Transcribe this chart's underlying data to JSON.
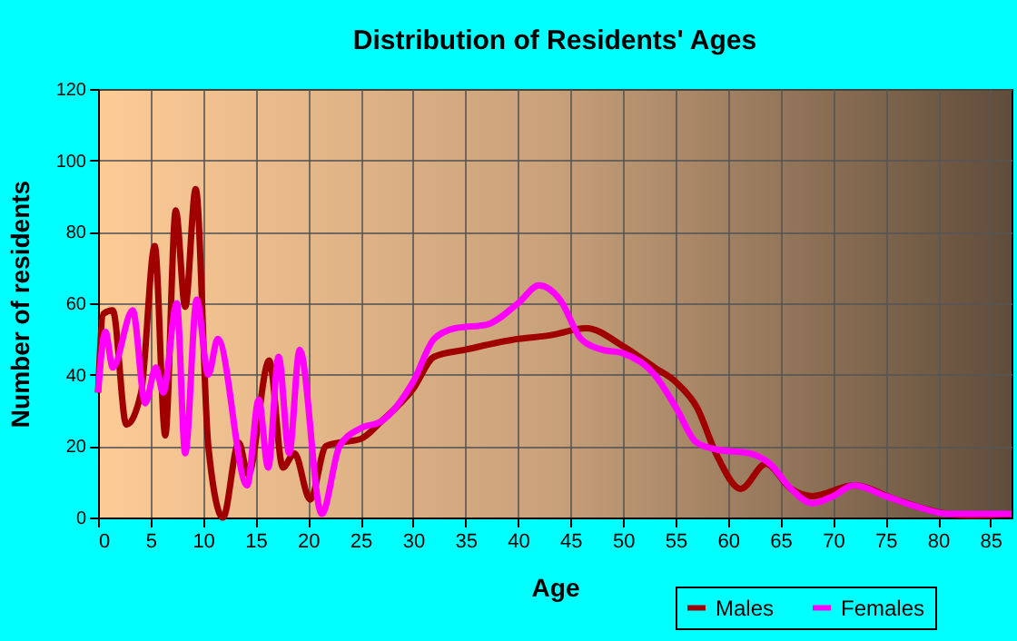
{
  "chart_data": {
    "type": "line",
    "title": "Distribution of Residents' Ages",
    "xlabel": "Age",
    "ylabel": "Number of residents",
    "xlim": [
      0,
      87
    ],
    "xticks": [
      0,
      5,
      10,
      15,
      20,
      25,
      30,
      35,
      40,
      45,
      50,
      55,
      60,
      65,
      70,
      75,
      80,
      85
    ],
    "ylim": [
      0,
      120
    ],
    "yticks": [
      0,
      20,
      40,
      60,
      80,
      100,
      120
    ],
    "grid": true,
    "legend": "bottom right",
    "marker": "none",
    "line_style": "solid",
    "series": [
      {
        "name": "Males",
        "color": "#a00000",
        "x": [
          0,
          0.5,
          1.4,
          2.7,
          4.1,
          5.4,
          6.4,
          7.4,
          8.3,
          9.3,
          10.5,
          11.9,
          13.4,
          14.3,
          16.3,
          17.6,
          18.7,
          20.2,
          21.7,
          23,
          25,
          27,
          30,
          32,
          35,
          40,
          43,
          46.5,
          50,
          53,
          55,
          57,
          59,
          61.2,
          63.6,
          66,
          68,
          72,
          76,
          80,
          83,
          87
        ],
        "values": [
          35,
          57,
          58,
          26,
          35,
          76,
          23,
          86,
          59,
          92,
          20,
          0,
          21,
          12,
          44,
          14,
          18,
          5,
          20,
          21,
          22,
          27,
          36,
          45,
          47,
          50,
          51,
          53,
          48,
          42,
          38,
          31,
          17,
          8,
          15,
          8,
          6,
          9,
          5,
          1.5,
          0.5,
          1
        ]
      },
      {
        "name": "Females",
        "color": "#ff00ff",
        "x": [
          0,
          0.7,
          1.4,
          3.3,
          4.5,
          5.5,
          6.2,
          7.5,
          8.3,
          9.4,
          10.5,
          11.4,
          14.2,
          15.3,
          16.2,
          17.2,
          18.2,
          19.2,
          21.3,
          23,
          25,
          27,
          30,
          32,
          34,
          37,
          40,
          42,
          44,
          46,
          48,
          50,
          53,
          55,
          57,
          59,
          62,
          64,
          66,
          68,
          70,
          72,
          75,
          78,
          81,
          87
        ],
        "values": [
          35,
          52,
          42,
          58,
          32,
          42,
          35,
          60,
          18,
          61,
          40,
          50,
          9,
          33,
          14,
          45,
          18,
          47,
          1,
          20,
          25,
          27,
          38,
          50,
          53,
          54,
          60,
          65,
          61,
          50,
          47,
          46,
          40,
          31,
          21,
          19,
          18,
          15,
          8,
          4,
          6,
          9,
          6,
          3,
          1,
          1
        ]
      }
    ]
  }
}
